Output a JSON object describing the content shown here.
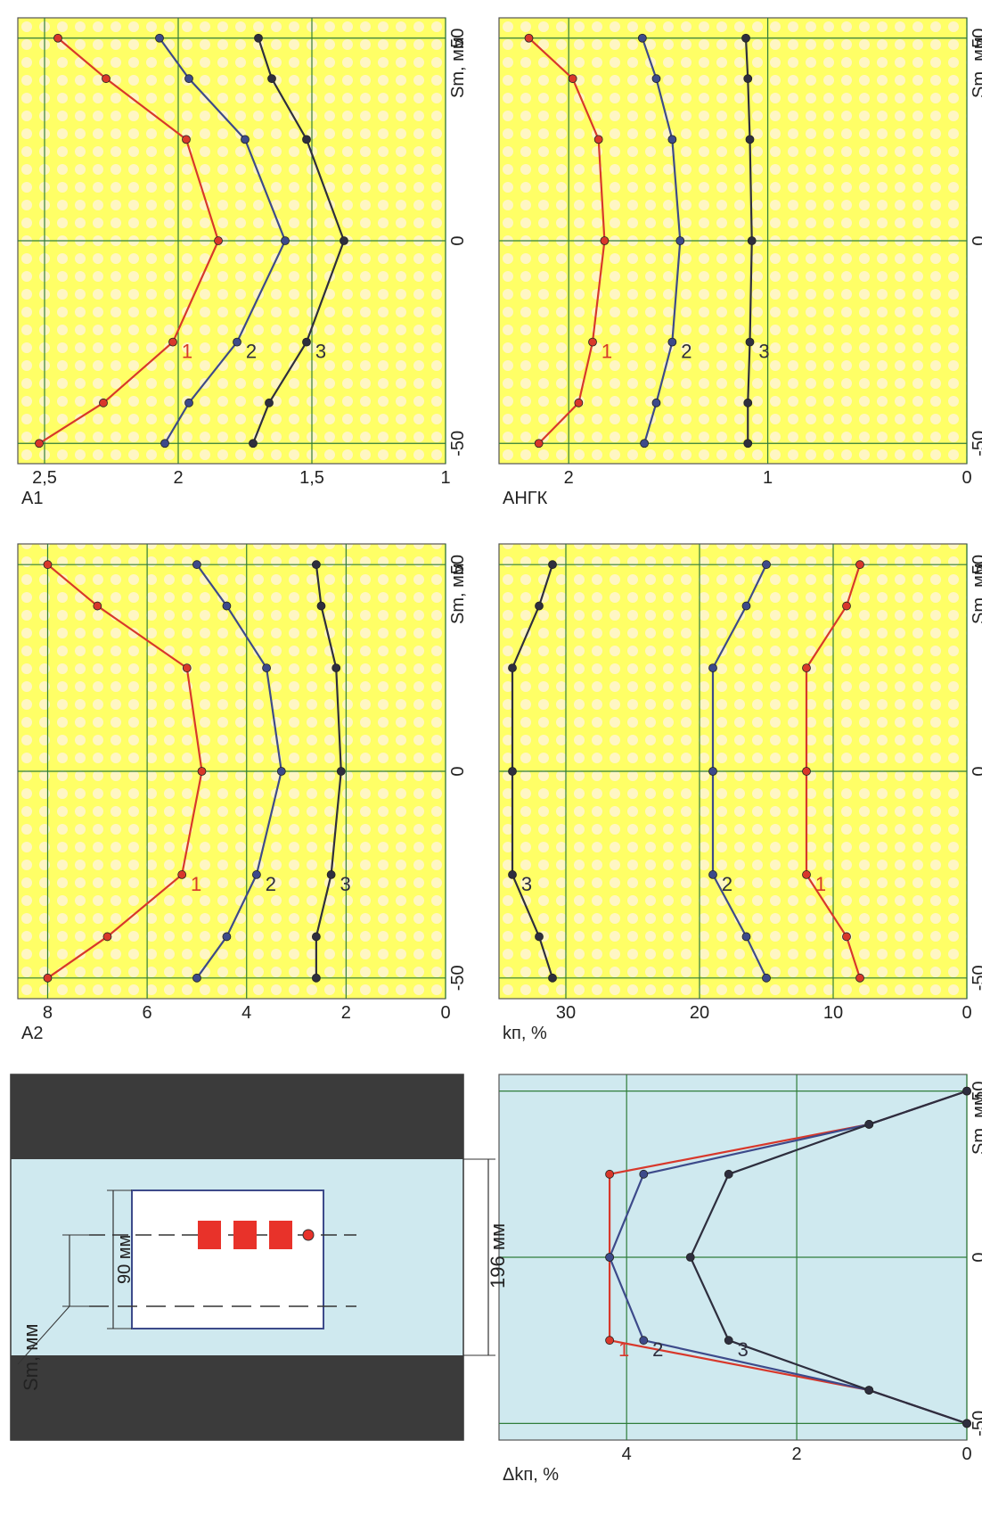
{
  "colors": {
    "yellow_bg": "#ffff7a",
    "yellow_dots": "#fff3b0",
    "blue_bg": "#cfe9ef",
    "grid": "#2f7d3a",
    "series_1": "#d8382b",
    "series_2": "#3d4a8a",
    "series_3": "#2e2e3e",
    "block_red": "#e8322a",
    "wall": "#3b3b3b"
  },
  "chart_data": [
    {
      "id": "A1",
      "type": "line",
      "ylabel": "A1",
      "xlabel": "Sm, мм",
      "xlim": [
        -55,
        55
      ],
      "ylim": [
        1,
        2.6
      ],
      "xticks": [
        -50,
        0,
        50
      ],
      "xtick_labels": [
        "-50",
        "0",
        "50"
      ],
      "yticks": [
        1,
        1.5,
        2,
        2.5
      ],
      "ytick_labels": [
        "1",
        "1,5",
        "2",
        "2,5"
      ],
      "x": [
        -50,
        -40,
        -25,
        0,
        25,
        40,
        50
      ],
      "series": [
        {
          "name": "1",
          "values": [
            2.52,
            2.28,
            2.02,
            1.85,
            1.97,
            2.27,
            2.45
          ]
        },
        {
          "name": "2",
          "values": [
            2.05,
            1.96,
            1.78,
            1.6,
            1.75,
            1.96,
            2.07
          ]
        },
        {
          "name": "3",
          "values": [
            1.72,
            1.66,
            1.52,
            1.38,
            1.52,
            1.65,
            1.7
          ]
        }
      ]
    },
    {
      "id": "A2",
      "type": "line",
      "ylabel": "A2",
      "xlabel": "Sm, мм",
      "xlim": [
        -55,
        55
      ],
      "ylim": [
        0,
        8.6
      ],
      "xticks": [
        -50,
        0,
        50
      ],
      "xtick_labels": [
        "-50",
        "0",
        "50"
      ],
      "yticks": [
        0,
        2,
        4,
        6,
        8
      ],
      "ytick_labels": [
        "0",
        "2",
        "4",
        "6",
        "8"
      ],
      "x": [
        -50,
        -40,
        -25,
        0,
        25,
        40,
        50
      ],
      "series": [
        {
          "name": "1",
          "values": [
            8.0,
            6.8,
            5.3,
            4.9,
            5.2,
            7.0,
            8.0
          ]
        },
        {
          "name": "2",
          "values": [
            5.0,
            4.4,
            3.8,
            3.3,
            3.6,
            4.4,
            5.0
          ]
        },
        {
          "name": "3",
          "values": [
            2.6,
            2.6,
            2.3,
            2.1,
            2.2,
            2.5,
            2.6
          ]
        }
      ]
    },
    {
      "id": "AHGK",
      "type": "line",
      "ylabel": "AНГК",
      "xlabel": "Sm, мм",
      "xlim": [
        -55,
        55
      ],
      "ylim": [
        0,
        2.35
      ],
      "xticks": [
        -50,
        0,
        50
      ],
      "xtick_labels": [
        "-50",
        "0",
        "50"
      ],
      "yticks": [
        0,
        1,
        2
      ],
      "ytick_labels": [
        "0",
        "1",
        "2"
      ],
      "x": [
        -50,
        -40,
        -25,
        0,
        25,
        40,
        50
      ],
      "series": [
        {
          "name": "1",
          "values": [
            2.15,
            1.95,
            1.88,
            1.82,
            1.85,
            1.98,
            2.2
          ]
        },
        {
          "name": "2",
          "values": [
            1.62,
            1.56,
            1.48,
            1.44,
            1.48,
            1.56,
            1.63
          ]
        },
        {
          "name": "3",
          "values": [
            1.1,
            1.1,
            1.09,
            1.08,
            1.09,
            1.1,
            1.11
          ]
        }
      ]
    },
    {
      "id": "kp",
      "type": "line",
      "ylabel": "kп, %",
      "xlabel": "Sm, мм",
      "xlim": [
        -55,
        55
      ],
      "ylim": [
        0,
        35
      ],
      "xticks": [
        -50,
        0,
        50
      ],
      "xtick_labels": [
        "-50",
        "0",
        "50"
      ],
      "yticks": [
        0,
        10,
        20,
        30
      ],
      "ytick_labels": [
        "0",
        "10",
        "20",
        "30"
      ],
      "x": [
        -50,
        -40,
        -25,
        0,
        25,
        40,
        50
      ],
      "series": [
        {
          "name": "1",
          "values": [
            8,
            9,
            12,
            12,
            12,
            9,
            8
          ]
        },
        {
          "name": "2",
          "values": [
            15,
            16.5,
            19,
            19,
            19,
            16.5,
            15
          ]
        },
        {
          "name": "3",
          "values": [
            31,
            32,
            34,
            34,
            34,
            32,
            31
          ]
        }
      ]
    },
    {
      "id": "dkp",
      "type": "line",
      "ylabel": "Δkп, %",
      "xlabel": "Sm, мм",
      "xlim": [
        -55,
        55
      ],
      "ylim": [
        0,
        5.5
      ],
      "xticks": [
        -50,
        0,
        50
      ],
      "xtick_labels": [
        "-50",
        "0",
        "50"
      ],
      "yticks": [
        0,
        2,
        4
      ],
      "ytick_labels": [
        "0",
        "2",
        "4"
      ],
      "x": [
        -50,
        -40,
        -25,
        0,
        25,
        40,
        50
      ],
      "series": [
        {
          "name": "1",
          "values": [
            0,
            1.15,
            4.2,
            4.2,
            4.2,
            1.15,
            0
          ]
        },
        {
          "name": "2",
          "values": [
            0,
            1.15,
            3.8,
            4.2,
            3.8,
            1.15,
            0
          ]
        },
        {
          "name": "3",
          "values": [
            0,
            1.15,
            2.8,
            3.25,
            2.8,
            1.15,
            0
          ]
        }
      ]
    }
  ],
  "scheme": {
    "dim_196": "196 мм",
    "dim_90": "90 мм",
    "sm_label": "Sm, мм"
  }
}
